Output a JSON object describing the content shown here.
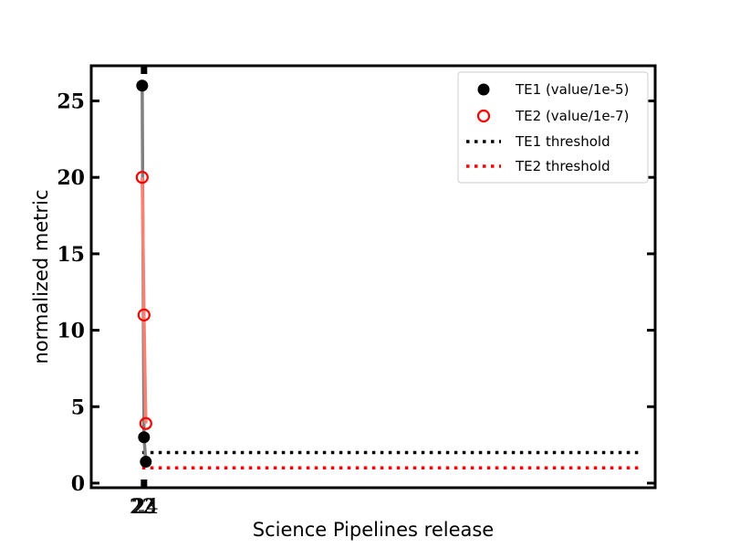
{
  "chart_data": {
    "type": "line",
    "title": "",
    "xlabel": "Science Pipelines release",
    "ylabel": "normalized metric",
    "x_ticks": [
      22,
      23,
      24
    ],
    "x_tick_labels": [
      "22",
      "23",
      "24"
    ],
    "xlim": [
      -6,
      304
    ],
    "y_ticks": [
      0,
      5,
      10,
      15,
      20,
      25
    ],
    "y_tick_labels": [
      "0",
      "5",
      "10",
      "15",
      "20",
      "25"
    ],
    "ylim": [
      -0.3,
      27.3
    ],
    "grid": false,
    "legend_position": "top-right",
    "series": [
      {
        "name": "TE1 (value/1e-5)",
        "x": [
          22,
          23,
          24
        ],
        "y": [
          26,
          3,
          1.4
        ],
        "marker": "filled-circle",
        "marker_color": "#000000",
        "line_color": "#808080"
      },
      {
        "name": "TE2 (value/1e-7)",
        "x": [
          22,
          23,
          24
        ],
        "y": [
          20,
          11,
          3.9
        ],
        "marker": "open-circle",
        "marker_color": "#ff0000",
        "line_color": "#fa8072"
      },
      {
        "name": "TE1 threshold",
        "style": "dotted",
        "color": "#000000",
        "y": 2,
        "x_span": [
          22,
          296
        ]
      },
      {
        "name": "TE2 threshold",
        "style": "dotted",
        "color": "#ff0000",
        "y": 1,
        "x_span": [
          22,
          296
        ]
      }
    ]
  }
}
